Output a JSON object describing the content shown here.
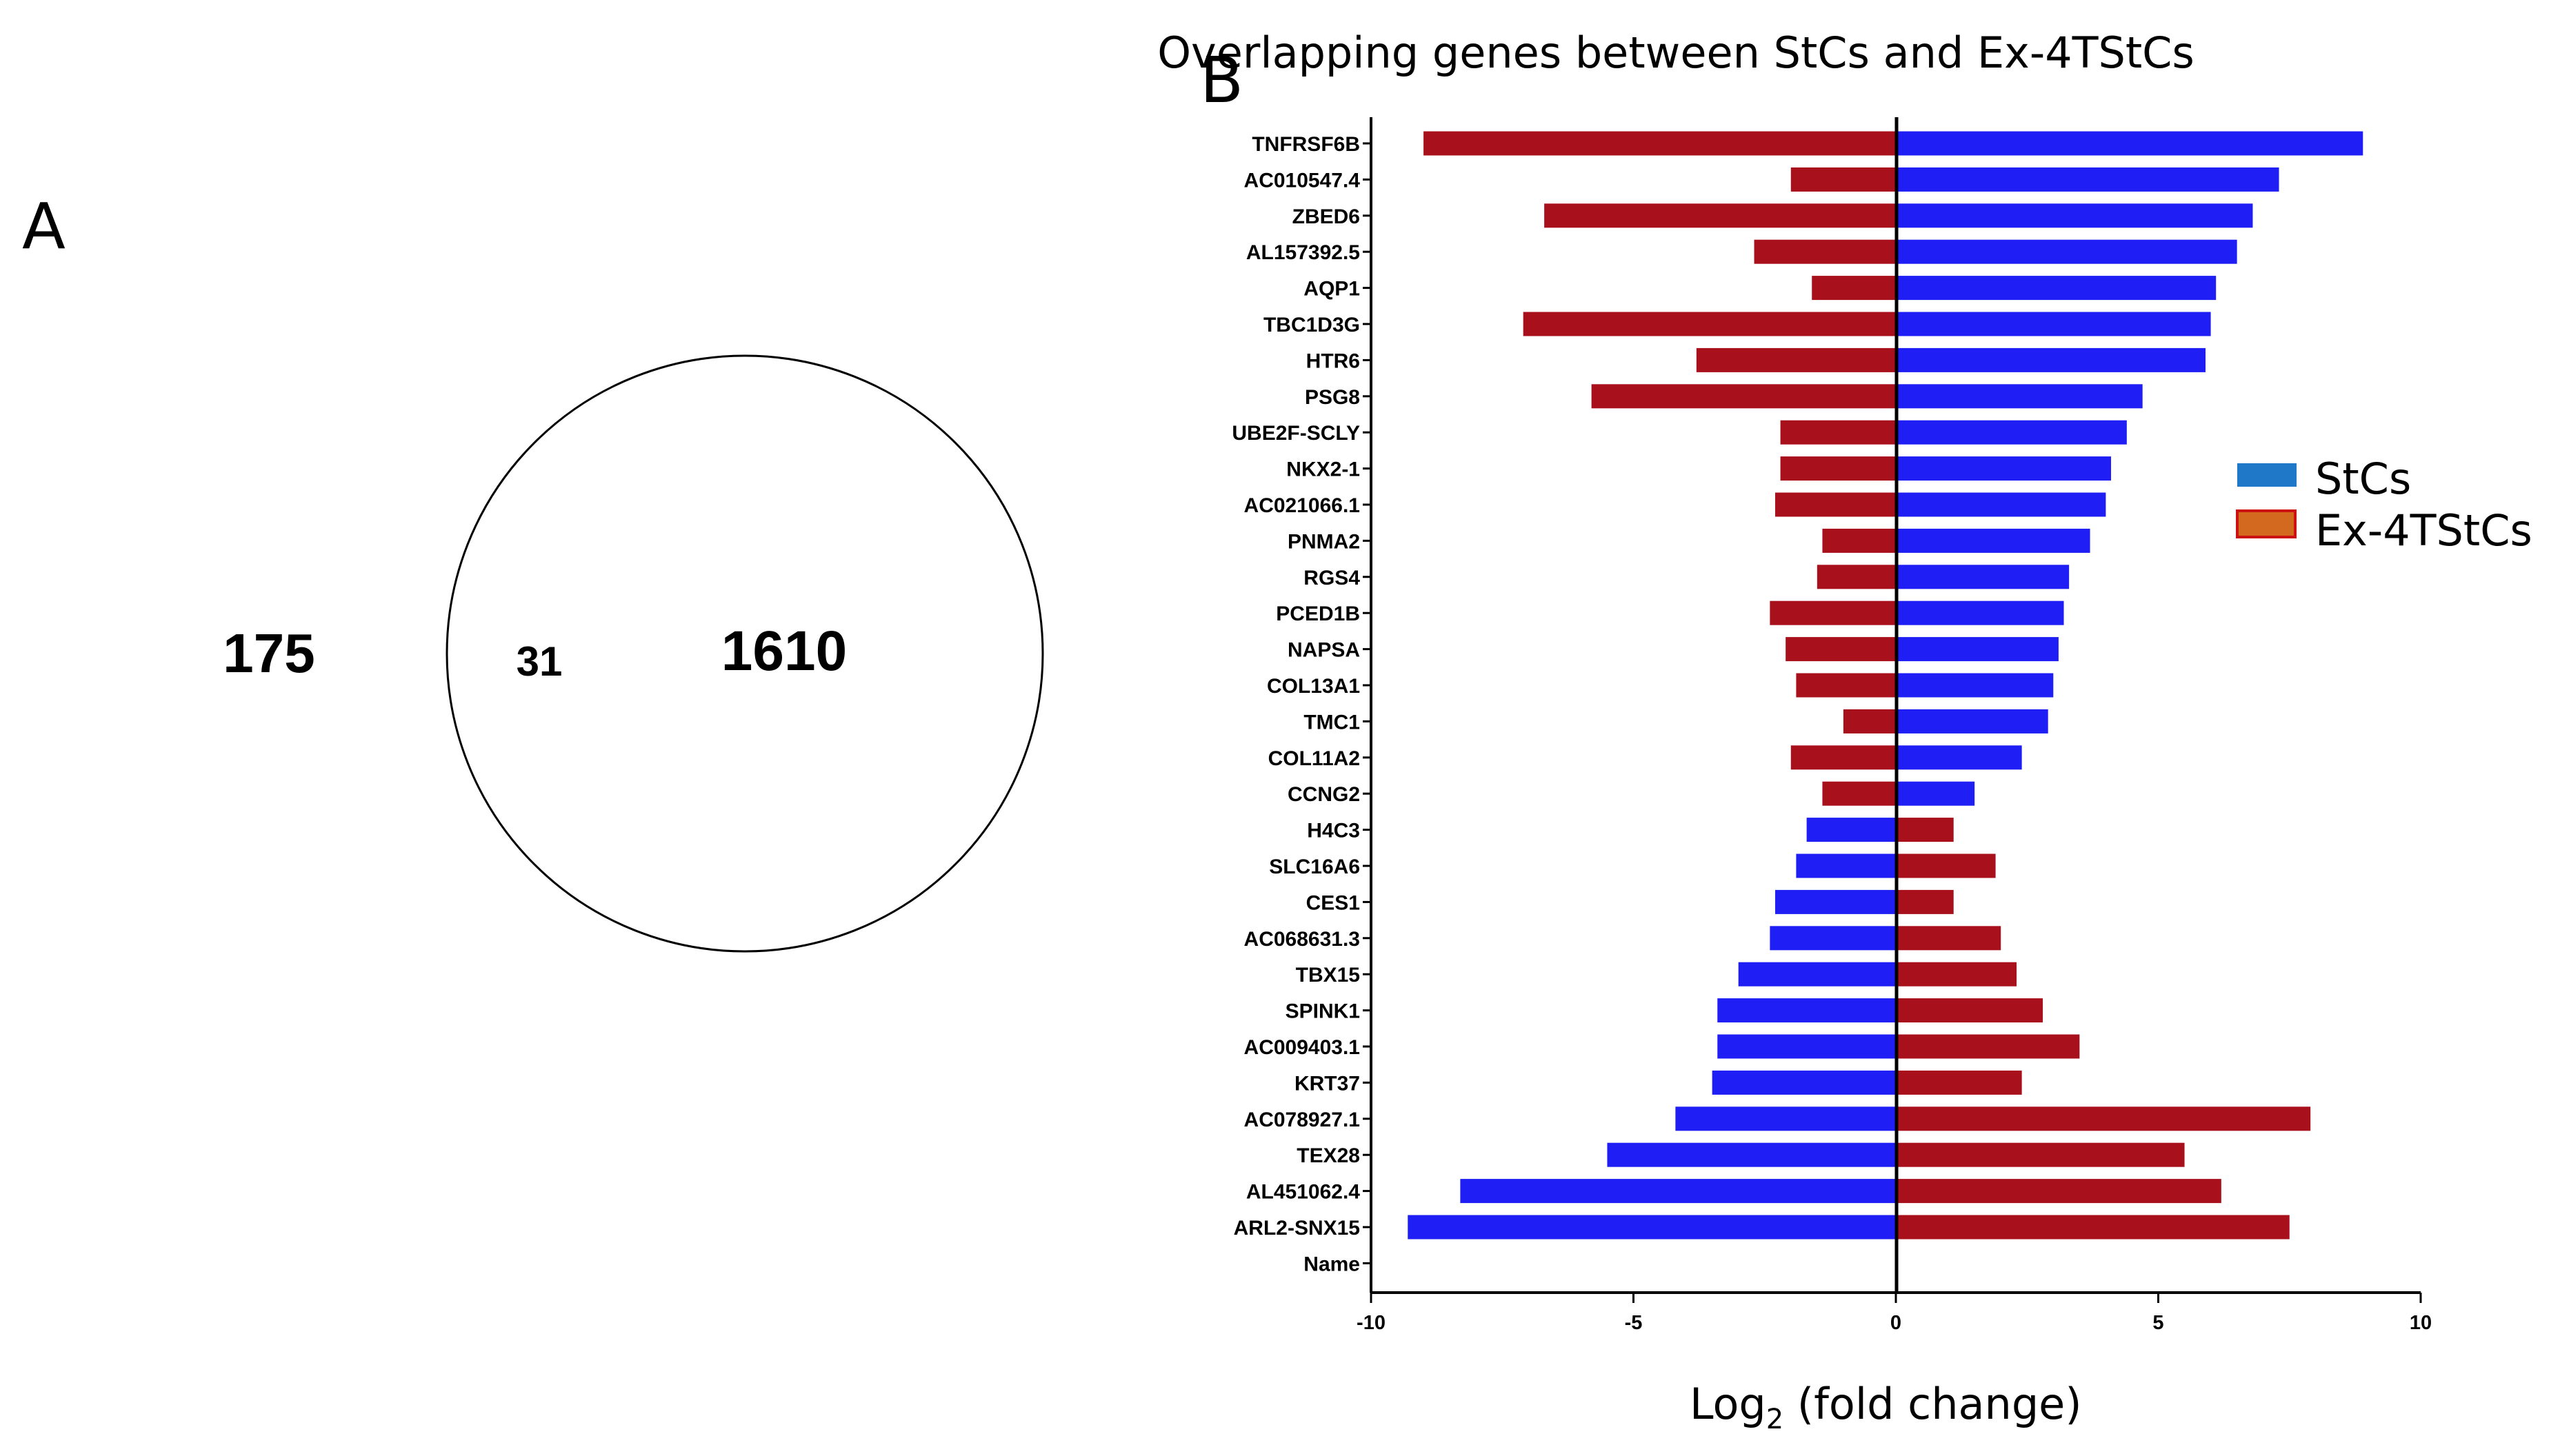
{
  "panel_a": {
    "letter": "A",
    "outside_count": "175",
    "overlap_count": "31",
    "circle_count": "1610"
  },
  "panel_b": {
    "letter": "B"
  },
  "colors": {
    "stcs": "#1f1ff5",
    "ex4tstcs": "#a8101c",
    "legend_stcs": "#1f78c8",
    "legend_ex4tstcs": "#d2691e",
    "legend_ex4tstcs_border": "#cc1111"
  },
  "chart_data": {
    "type": "bar",
    "orientation": "horizontal",
    "title": "Overlapping genes between StCs and Ex-4TStCs",
    "xlabel_main": "Log",
    "xlabel_sub": "2",
    "xlabel_rest": " (fold change)",
    "ylabel": "",
    "xlim": [
      -10,
      10
    ],
    "xticks": [
      -10,
      -5,
      0,
      5,
      10
    ],
    "xtick_labels": [
      "-10",
      "-5",
      "0",
      "5",
      "10"
    ],
    "legend_position": "right",
    "categories": [
      "TNFRSF6B",
      "AC010547.4",
      "ZBED6",
      "AL157392.5",
      "AQP1",
      "TBC1D3G",
      "HTR6",
      "PSG8",
      "UBE2F-SCLY",
      "NKX2-1",
      "AC021066.1",
      "PNMA2",
      "RGS4",
      "PCED1B",
      "NAPSA",
      "COL13A1",
      "TMC1",
      "COL11A2",
      "CCNG2",
      "H4C3",
      "SLC16A6",
      "CES1",
      "AC068631.3",
      "TBX15",
      "SPINK1",
      "AC009403.1",
      "KRT37",
      "AC078927.1",
      "TEX28",
      "AL451062.4",
      "ARL2-SNX15",
      "Name"
    ],
    "series": [
      {
        "name": "StCs",
        "values": [
          8.9,
          7.3,
          6.8,
          6.5,
          6.1,
          6.0,
          5.9,
          4.7,
          4.4,
          4.1,
          4.0,
          3.7,
          3.3,
          3.2,
          3.1,
          3.0,
          2.9,
          2.4,
          1.5,
          -1.7,
          -1.9,
          -2.3,
          -2.4,
          -3.0,
          -3.4,
          -3.4,
          -3.5,
          -4.2,
          -5.5,
          -8.3,
          -9.3,
          null
        ]
      },
      {
        "name": "Ex-4TStCs",
        "values": [
          -9.0,
          -2.0,
          -6.7,
          -2.7,
          -1.6,
          -7.1,
          -3.8,
          -5.8,
          -2.2,
          -2.2,
          -2.3,
          -1.4,
          -1.5,
          -2.4,
          -2.1,
          -1.9,
          -1.0,
          -2.0,
          -1.4,
          1.1,
          1.9,
          1.1,
          2.0,
          2.3,
          2.8,
          3.5,
          2.4,
          7.9,
          5.5,
          6.2,
          7.5,
          null
        ]
      }
    ]
  }
}
